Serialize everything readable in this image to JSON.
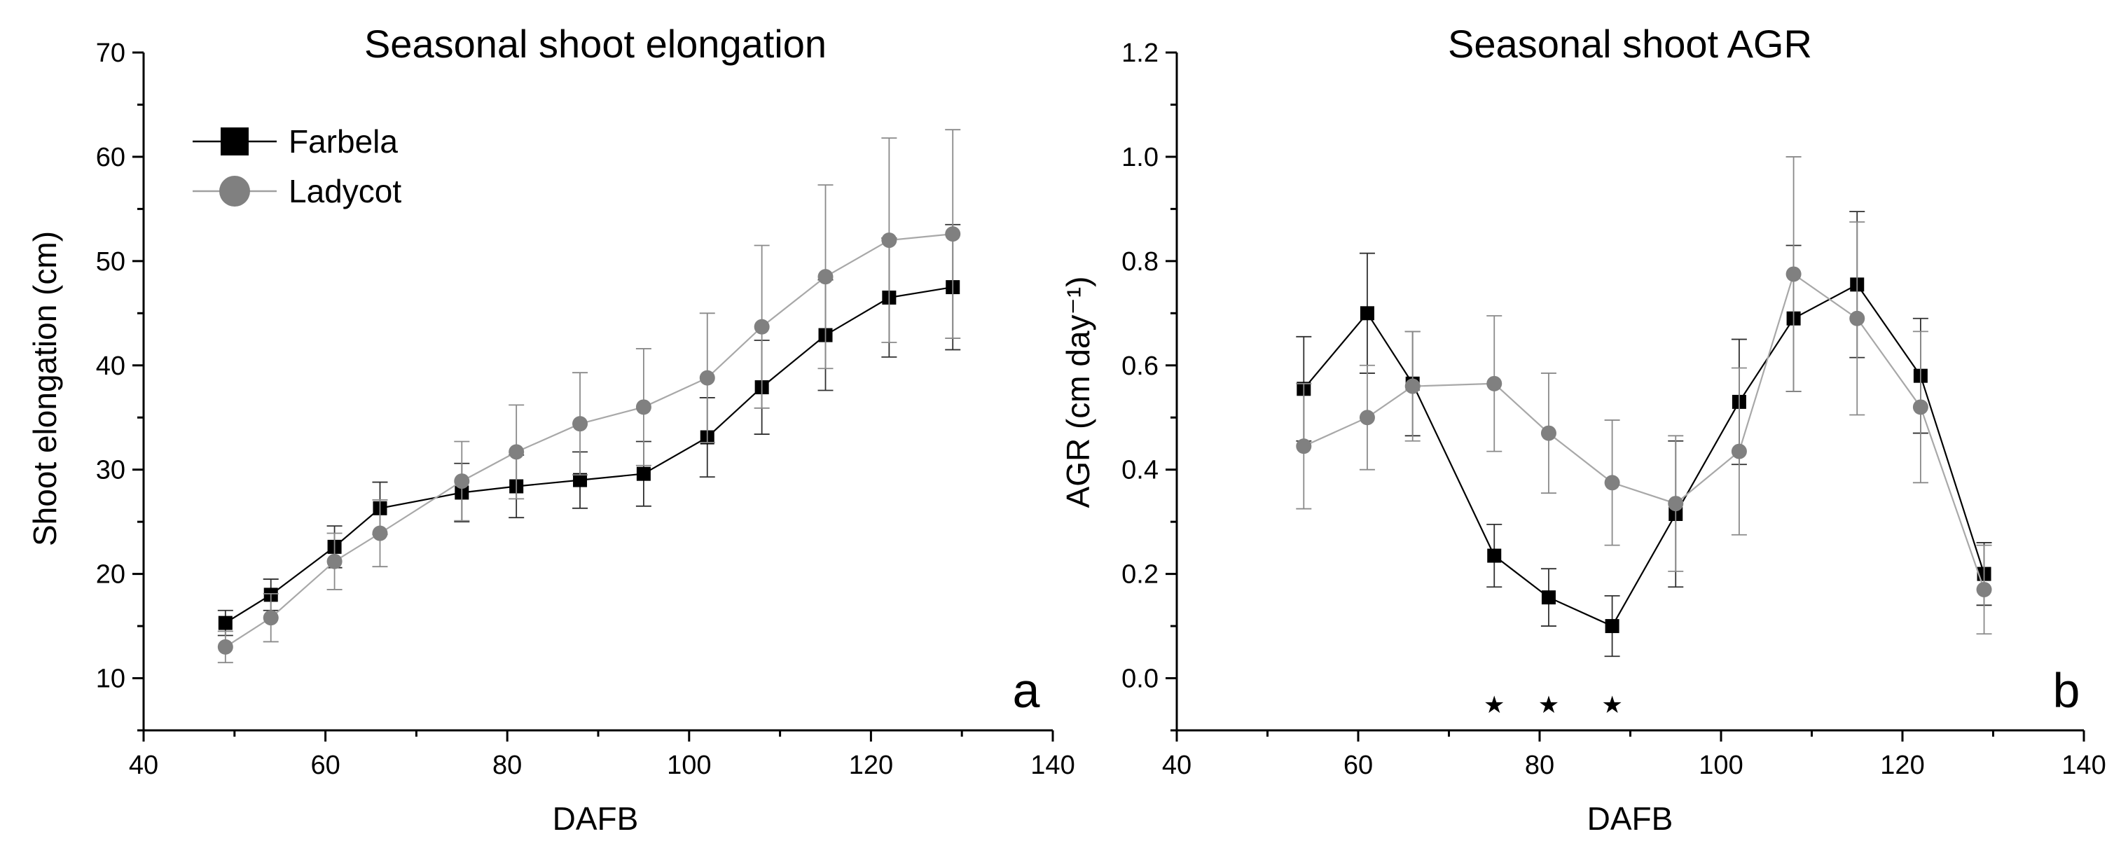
{
  "chart_data": [
    {
      "type": "line",
      "title": "Seasonal shoot elongation",
      "xlabel": "DAFB",
      "ylabel": "Shoot elongation (cm)",
      "panel_label": "a",
      "xlim": [
        40,
        140
      ],
      "ylim": [
        5,
        70
      ],
      "xticks": [
        40,
        60,
        80,
        100,
        120,
        140
      ],
      "yticks": [
        10,
        20,
        30,
        40,
        50,
        60,
        70
      ],
      "legend": "top-left",
      "grid": false,
      "series": [
        {
          "name": "Farbela",
          "color": "#000000",
          "marker": "square",
          "x": [
            49,
            54,
            61,
            66,
            75,
            81,
            88,
            95,
            102,
            108,
            115,
            122,
            129
          ],
          "y": [
            15.3,
            18.0,
            22.6,
            26.3,
            27.8,
            28.4,
            29.0,
            29.6,
            33.1,
            37.9,
            42.9,
            46.5,
            47.5
          ],
          "err": [
            1.2,
            1.5,
            2.0,
            2.5,
            2.8,
            3.0,
            2.7,
            3.1,
            3.8,
            4.5,
            5.3,
            5.7,
            6.0
          ]
        },
        {
          "name": "Ladycot",
          "color": "#808080",
          "marker": "circle",
          "x": [
            49,
            54,
            61,
            66,
            75,
            81,
            88,
            95,
            102,
            108,
            115,
            122,
            129
          ],
          "y": [
            13.0,
            15.8,
            21.2,
            23.9,
            28.9,
            31.7,
            34.4,
            36.0,
            38.8,
            43.7,
            48.5,
            52.0,
            52.6
          ],
          "err": [
            1.5,
            2.3,
            2.7,
            3.2,
            3.8,
            4.5,
            4.9,
            5.6,
            6.2,
            7.8,
            8.8,
            9.8,
            10.0
          ]
        }
      ]
    },
    {
      "type": "line",
      "title": "Seasonal shoot AGR",
      "xlabel": "DAFB",
      "ylabel": "AGR (cm day⁻¹)",
      "panel_label": "b",
      "xlim": [
        40,
        140
      ],
      "ylim": [
        -0.1,
        1.2
      ],
      "xticks": [
        40,
        60,
        80,
        100,
        120,
        140
      ],
      "yticks": [
        "0.0",
        "0.2",
        "0.4",
        "0.6",
        "0.8",
        "1.0",
        "1.2"
      ],
      "grid": false,
      "significance_markers": {
        "symbol": "★",
        "x": [
          75,
          81,
          88
        ]
      },
      "series": [
        {
          "name": "Farbela",
          "color": "#000000",
          "marker": "square",
          "x": [
            54,
            61,
            66,
            75,
            81,
            88,
            95,
            102,
            108,
            115,
            122,
            129
          ],
          "y": [
            0.555,
            0.7,
            0.565,
            0.235,
            0.155,
            0.1,
            0.315,
            0.53,
            0.69,
            0.755,
            0.58,
            0.2
          ],
          "err": [
            0.1,
            0.115,
            0.1,
            0.06,
            0.055,
            0.058,
            0.14,
            0.12,
            0.14,
            0.14,
            0.11,
            0.06
          ]
        },
        {
          "name": "Ladycot",
          "color": "#808080",
          "marker": "circle",
          "x": [
            54,
            61,
            66,
            75,
            81,
            88,
            95,
            102,
            108,
            115,
            122,
            129
          ],
          "y": [
            0.445,
            0.5,
            0.56,
            0.565,
            0.47,
            0.375,
            0.335,
            0.435,
            0.775,
            0.69,
            0.52,
            0.17
          ],
          "err": [
            0.12,
            0.1,
            0.105,
            0.13,
            0.115,
            0.12,
            0.13,
            0.16,
            0.225,
            0.185,
            0.145,
            0.085
          ]
        }
      ]
    }
  ]
}
